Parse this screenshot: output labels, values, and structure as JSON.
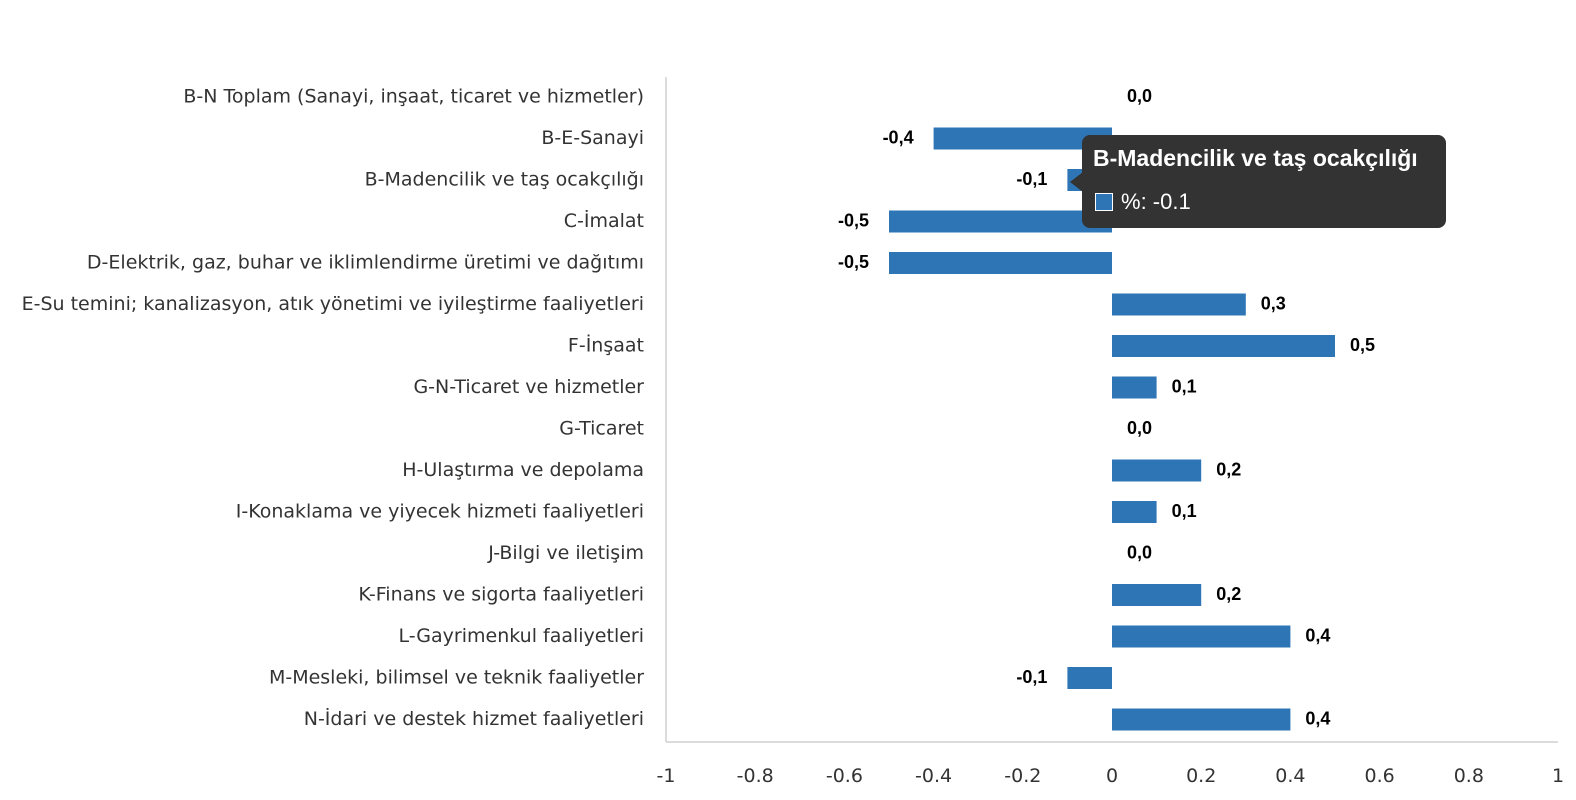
{
  "chart_data": {
    "type": "bar",
    "orientation": "horizontal",
    "categories": [
      "B-N Toplam (Sanayi, inşaat, ticaret ve hizmetler)",
      "B-E-Sanayi",
      "B-Madencilik ve taş ocakçılığı",
      "C-İmalat",
      "D-Elektrik, gaz, buhar ve iklimlendirme üretimi ve dağıtımı",
      "E-Su temini; kanalizasyon, atık yönetimi ve iyileştirme faaliyetleri",
      "F-İnşaat",
      "G-N-Ticaret ve hizmetler",
      "G-Ticaret",
      "H-Ulaştırma ve depolama",
      "I-Konaklama ve yiyecek hizmeti faaliyetleri",
      "J-Bilgi ve iletişim",
      "K-Finans ve sigorta faaliyetleri",
      "L-Gayrimenkul faaliyetleri",
      "M-Mesleki, bilimsel ve teknik faaliyetler",
      "N-İdari ve destek hizmet faaliyetleri"
    ],
    "series": [
      {
        "name": "%",
        "values": [
          0.0,
          -0.4,
          -0.1,
          -0.5,
          -0.5,
          0.3,
          0.5,
          0.1,
          0.0,
          0.2,
          0.1,
          0.0,
          0.2,
          0.4,
          -0.1,
          0.4
        ],
        "data_labels": [
          "0,0",
          "-0,4",
          "-0,1",
          "-0,5",
          "-0,5",
          "0,3",
          "0,5",
          "0,1",
          "0,0",
          "0,2",
          "0,1",
          "0,0",
          "0,2",
          "0,4",
          "-0,1",
          "0,4"
        ]
      }
    ],
    "xlim": [
      -1,
      1
    ],
    "xticks": [
      "-1",
      "-0.8",
      "-0.6",
      "-0.4",
      "-0.2",
      "0",
      "0.2",
      "0.4",
      "0.6",
      "0.8",
      "1"
    ],
    "color": "#2e75b6",
    "title": "",
    "xlabel": "",
    "ylabel": "",
    "grid": false
  },
  "tooltip": {
    "title": "B-Madencilik ve taş ocakçılığı",
    "series_label": "%",
    "value_text": "-0.1"
  }
}
